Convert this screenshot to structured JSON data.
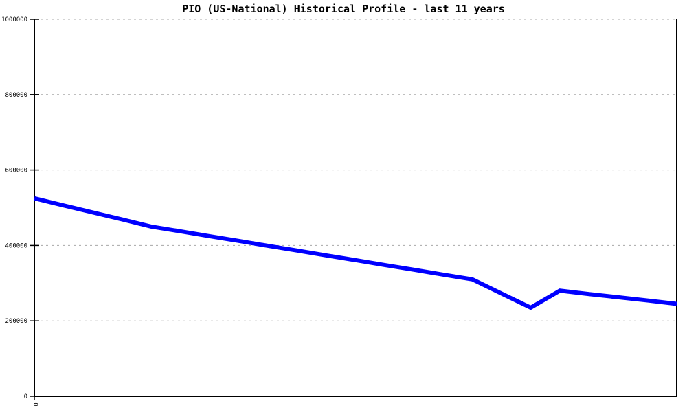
{
  "page": {
    "background": "#ffffff"
  },
  "chart_data": {
    "type": "line",
    "title": "PIO (US-National) Historical Profile - last 11 years",
    "series_name": "PIO (US-National)",
    "x": [
      0,
      1,
      2,
      3,
      4,
      5,
      6,
      7,
      8,
      9,
      10,
      11,
      12,
      13,
      14,
      15,
      16,
      17,
      18,
      19,
      20,
      21,
      22
    ],
    "values": [
      525000,
      506000,
      487500,
      469000,
      450000,
      437500,
      424500,
      412000,
      399000,
      386500,
      373500,
      361000,
      348000,
      335500,
      322500,
      310000,
      272500,
      235000,
      280000,
      271000,
      262500,
      254000,
      245000
    ],
    "xlim": [
      0,
      22
    ],
    "ylim": [
      0,
      1000000
    ],
    "y_ticks": [
      0,
      200000,
      400000,
      600000,
      800000,
      1000000
    ],
    "y_tick_labels": [
      "0",
      "200000",
      "400000",
      "600000",
      "800000",
      "1000000"
    ],
    "x_ticks": [
      0
    ],
    "x_tick_labels": [
      "0"
    ],
    "grid": "horizontal-dashed",
    "legend": "none",
    "line_color": "#0000ff",
    "line_width": 6,
    "grid_color": "#a8a8a8",
    "axis_color": "#000000",
    "title_color": "#000000"
  }
}
